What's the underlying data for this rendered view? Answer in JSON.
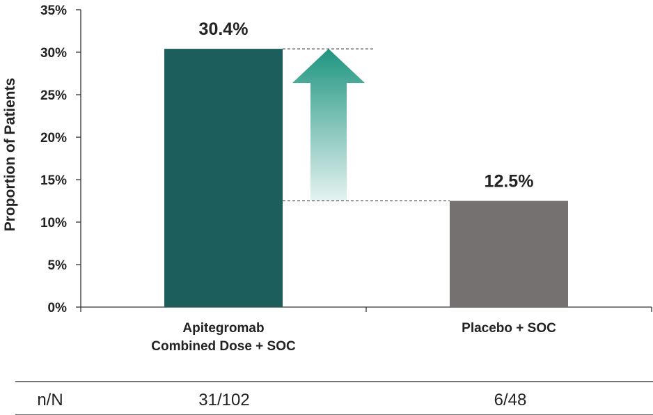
{
  "chart_data": {
    "type": "bar",
    "title": "",
    "xlabel": "",
    "ylabel": "Proportion of Patients",
    "ylim": [
      0,
      35
    ],
    "yticks": [
      0,
      5,
      10,
      15,
      20,
      25,
      30,
      35
    ],
    "ytick_labels": [
      "0%",
      "5%",
      "10%",
      "15%",
      "20%",
      "25%",
      "30%",
      "35%"
    ],
    "categories": [
      [
        "Apitegromab",
        "Combined Dose + SOC"
      ],
      [
        "Placebo + SOC"
      ]
    ],
    "values": [
      30.4,
      12.5
    ],
    "data_labels": [
      "30.4%",
      "12.5%"
    ],
    "colors": [
      "#1b5e5b",
      "#767171"
    ],
    "arrow_color": "#1f9580",
    "annotation": "increase arrow from 12.5% to 30.4%"
  },
  "table": {
    "row_label": "n/N",
    "values": [
      "31/102",
      "6/48"
    ]
  }
}
